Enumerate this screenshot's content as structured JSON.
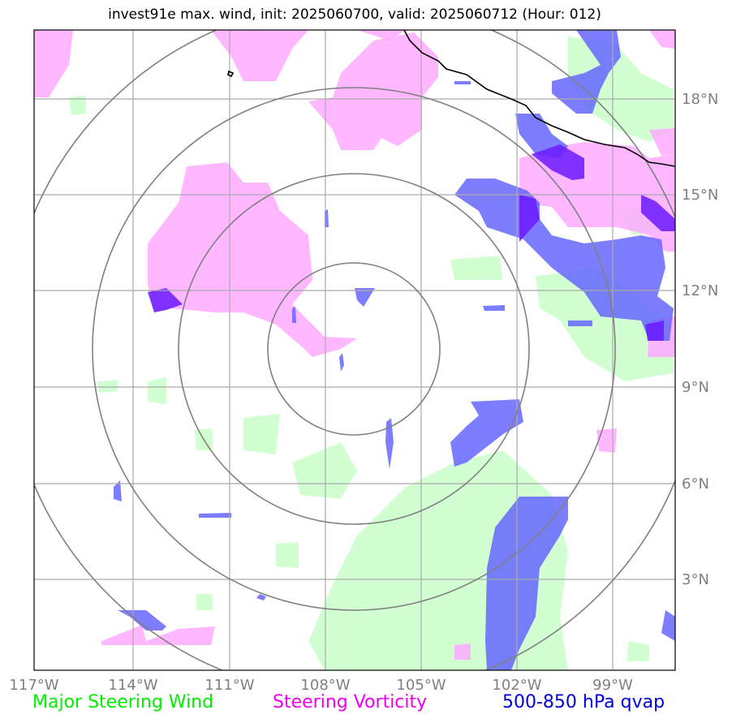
{
  "title": "invest91e max. wind, init: 2025060700, valid: 2025060712 (Hour: 012)",
  "map": {
    "lon_ticks": [
      "117°W",
      "114°W",
      "111°W",
      "108°W",
      "105°W",
      "102°W",
      "99°W"
    ],
    "lat_ticks": [
      "18°N",
      "15°N",
      "12°N",
      "9°N",
      "6°N",
      "3°N"
    ],
    "range_rings_count": 4,
    "colors": {
      "steering_wind": "#ccffcc",
      "steering_vorticity": "#ffaaff",
      "qvap": "#6666ff",
      "qvap_dark": "#6a1aff",
      "grid": "#aaaaaa",
      "ring": "#808080",
      "coast": "#000000"
    }
  },
  "legend": {
    "wind": "Major Steering Wind",
    "vorticity": "Steering Vorticity",
    "qvap": "500-850 hPa qvap"
  }
}
